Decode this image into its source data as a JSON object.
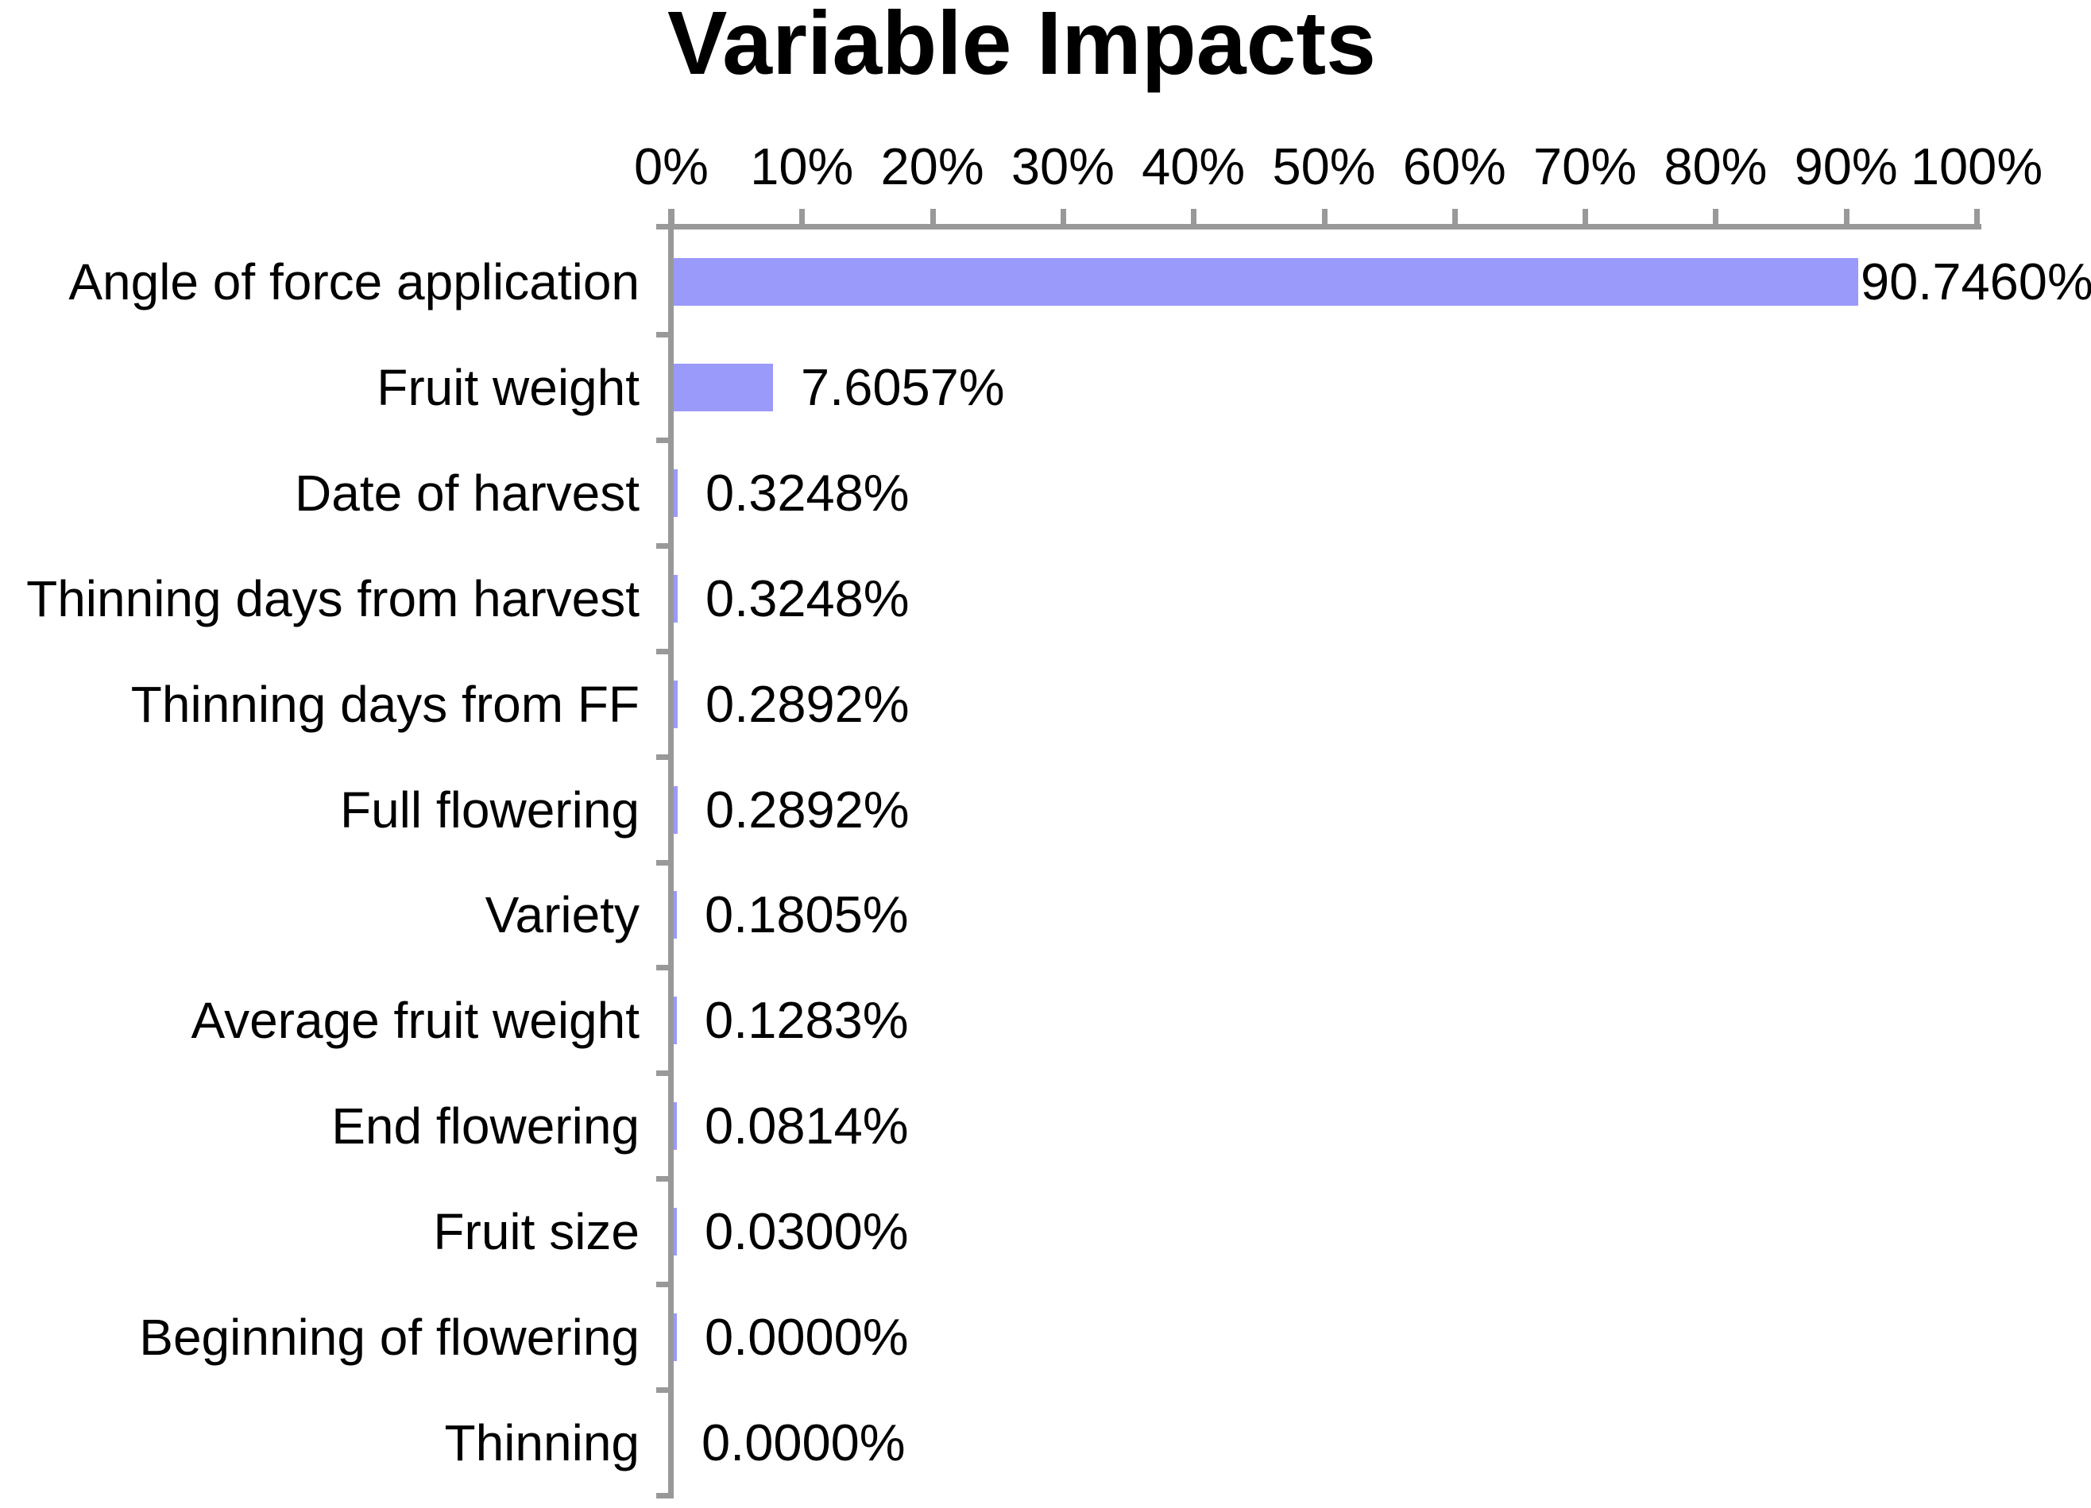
{
  "chart_data": {
    "type": "bar",
    "orientation": "horizontal",
    "title": "Variable Impacts",
    "xlabel": "",
    "ylabel": "",
    "xlim": [
      0,
      100
    ],
    "grid": false,
    "legend_position": "none",
    "x_ticks": [
      "0%",
      "10%",
      "20%",
      "30%",
      "40%",
      "50%",
      "60%",
      "70%",
      "80%",
      "90%",
      "100%"
    ],
    "categories": [
      "Angle of force application",
      "Fruit weight",
      "Date of harvest",
      "Thinning days from harvest",
      "Thinning days from FF",
      "Full flowering",
      "Variety",
      "Average fruit weight",
      "End flowering",
      "Fruit size",
      "Beginning of flowering",
      "Thinning"
    ],
    "values": [
      90.746,
      7.6057,
      0.3248,
      0.3248,
      0.2892,
      0.2892,
      0.1805,
      0.1283,
      0.0814,
      0.03,
      0.0,
      0.0
    ],
    "value_labels": [
      "90.7460%",
      "7.6057%",
      "0.3248%",
      "0.3248%",
      "0.2892%",
      "0.2892%",
      "0.1805%",
      "0.1283%",
      "0.0814%",
      "0.0300%",
      "0.0000%",
      "0.0000%"
    ],
    "colors": {
      "bar_fill": "#9A9AFB",
      "axis_line": "#999999",
      "text": "#000000",
      "background": "#FFFFFF"
    }
  }
}
